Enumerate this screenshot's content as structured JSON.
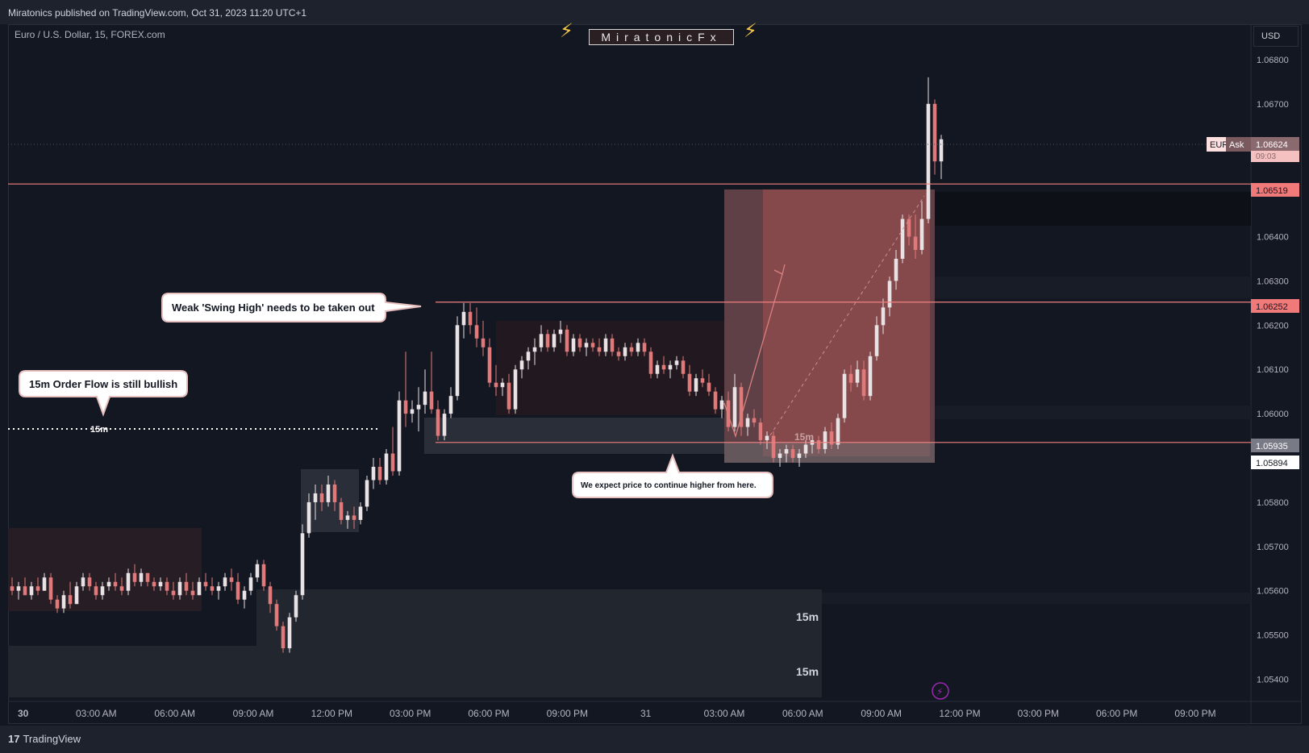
{
  "header": {
    "published": "Miratonics published on TradingView.com, Oct 31, 2023 11:20 UTC+1",
    "symbol": "Euro / U.S. Dollar, 15, FOREX.com",
    "brand": "MiratonicFx",
    "currency": "USD",
    "footer_logo": "TradingView"
  },
  "colors": {
    "background": "#131722",
    "bull_candle": "#e8e2e4",
    "bear_candle": "#e07a7a",
    "level_line": "#f08080",
    "zone_fill": "#e07a7a"
  },
  "annotations": {
    "swing_high": "Weak 'Swing High' needs to be taken out",
    "order_flow": "15m Order Flow is still bullish",
    "expect": "We expect price to continue higher from here.",
    "tf_label": "15m",
    "tf_label_2": "15m",
    "tf_label_3": "15m",
    "tf_label_4": "15m"
  },
  "price_tags": {
    "current": "1.06624",
    "current_sub": "09:03",
    "ask_label": "Ask",
    "eur_label": "EUR",
    "level_top": "1.06519",
    "level_mid": "1.06252",
    "level_low": "1.05935",
    "level_low2": "1.05894"
  },
  "chart_data": {
    "type": "candlestick",
    "symbol": "EURUSD",
    "timeframe": "15",
    "ylim": [
      1.0535,
      1.0688
    ],
    "y_ticks": [
      1.068,
      1.067,
      1.064,
      1.063,
      1.062,
      1.061,
      1.06,
      1.058,
      1.057,
      1.056,
      1.055,
      1.054
    ],
    "y_tick_labels": [
      "1.06800",
      "1.06700",
      "1.06400",
      "1.06300",
      "1.06200",
      "1.06100",
      "1.06000",
      "1.05800",
      "1.05700",
      "1.05600",
      "1.05500",
      "1.05400"
    ],
    "x_ticks": [
      "30",
      "03:00 AM",
      "06:00 AM",
      "09:00 AM",
      "12:00 PM",
      "03:00 PM",
      "06:00 PM",
      "09:00 PM",
      "31",
      "03:00 AM",
      "06:00 AM",
      "09:00 AM",
      "12:00 PM",
      "03:00 PM",
      "06:00 PM",
      "09:00 PM"
    ],
    "levels": [
      1.06519,
      1.06252,
      1.05935
    ],
    "series": [
      {
        "values": [
          [
            1.0561,
            1.0563,
            1.0559,
            1.056
          ],
          [
            1.056,
            1.0562,
            1.0558,
            1.0561
          ],
          [
            1.0561,
            1.0563,
            1.0559,
            1.0559
          ],
          [
            1.0559,
            1.0562,
            1.0558,
            1.0561
          ],
          [
            1.0561,
            1.0563,
            1.0559,
            1.056
          ],
          [
            1.056,
            1.0564,
            1.056,
            1.0563
          ],
          [
            1.0563,
            1.0564,
            1.0557,
            1.0558
          ],
          [
            1.0558,
            1.0559,
            1.0555,
            1.0556
          ],
          [
            1.0556,
            1.056,
            1.0555,
            1.0559
          ],
          [
            1.0559,
            1.0562,
            1.0556,
            1.0557
          ],
          [
            1.0557,
            1.0562,
            1.0557,
            1.0561
          ],
          [
            1.0561,
            1.0564,
            1.056,
            1.0563
          ],
          [
            1.0563,
            1.0564,
            1.056,
            1.0561
          ],
          [
            1.0561,
            1.0562,
            1.0558,
            1.0559
          ],
          [
            1.0559,
            1.0562,
            1.0558,
            1.0561
          ],
          [
            1.0561,
            1.0563,
            1.056,
            1.0562
          ],
          [
            1.0562,
            1.0564,
            1.056,
            1.0561
          ],
          [
            1.0561,
            1.0563,
            1.0559,
            1.056
          ],
          [
            1.056,
            1.0565,
            1.0559,
            1.0564
          ],
          [
            1.0564,
            1.0566,
            1.0561,
            1.0562
          ],
          [
            1.0562,
            1.0565,
            1.0561,
            1.0564
          ],
          [
            1.0564,
            1.0564,
            1.0561,
            1.0562
          ],
          [
            1.0562,
            1.0563,
            1.056,
            1.0561
          ],
          [
            1.0561,
            1.0563,
            1.056,
            1.0562
          ],
          [
            1.0562,
            1.0563,
            1.0559,
            1.056
          ],
          [
            1.056,
            1.0562,
            1.0558,
            1.0559
          ],
          [
            1.0559,
            1.0563,
            1.0558,
            1.0562
          ],
          [
            1.0562,
            1.0564,
            1.0559,
            1.056
          ],
          [
            1.056,
            1.0562,
            1.0558,
            1.0559
          ],
          [
            1.0559,
            1.0563,
            1.0559,
            1.0562
          ],
          [
            1.0562,
            1.0564,
            1.056,
            1.0561
          ],
          [
            1.0561,
            1.0563,
            1.0559,
            1.056
          ],
          [
            1.056,
            1.0562,
            1.0558,
            1.0561
          ],
          [
            1.0561,
            1.0564,
            1.056,
            1.0563
          ],
          [
            1.0563,
            1.0565,
            1.056,
            1.0562
          ],
          [
            1.0562,
            1.0564,
            1.0557,
            1.0558
          ],
          [
            1.0558,
            1.0561,
            1.0556,
            1.056
          ],
          [
            1.056,
            1.0564,
            1.0559,
            1.0563
          ],
          [
            1.0563,
            1.0567,
            1.0562,
            1.0566
          ],
          [
            1.0566,
            1.0567,
            1.056,
            1.0561
          ],
          [
            1.0561,
            1.0562,
            1.0555,
            1.0557
          ],
          [
            1.0557,
            1.0558,
            1.0551,
            1.0552
          ],
          [
            1.0552,
            1.0553,
            1.0546,
            1.0547
          ],
          [
            1.0547,
            1.0555,
            1.0546,
            1.0554
          ],
          [
            1.0554,
            1.056,
            1.0553,
            1.0559
          ],
          [
            1.0559,
            1.0575,
            1.0558,
            1.0573
          ],
          [
            1.0573,
            1.0582,
            1.0572,
            1.058
          ],
          [
            1.058,
            1.0584,
            1.0576,
            1.0582
          ],
          [
            1.0582,
            1.0584,
            1.0578,
            1.058
          ],
          [
            1.058,
            1.0586,
            1.0579,
            1.0584
          ],
          [
            1.0584,
            1.0585,
            1.0578,
            1.058
          ],
          [
            1.058,
            1.0581,
            1.0575,
            1.0576
          ],
          [
            1.0576,
            1.0578,
            1.0574,
            1.0577
          ],
          [
            1.0577,
            1.0579,
            1.0574,
            1.0576
          ],
          [
            1.0576,
            1.058,
            1.0575,
            1.0579
          ],
          [
            1.0579,
            1.0586,
            1.0578,
            1.0585
          ],
          [
            1.0585,
            1.059,
            1.0583,
            1.0588
          ],
          [
            1.0588,
            1.059,
            1.0584,
            1.0585
          ],
          [
            1.0585,
            1.0592,
            1.0584,
            1.0591
          ],
          [
            1.0591,
            1.0597,
            1.0586,
            1.0587
          ],
          [
            1.0587,
            1.0605,
            1.0586,
            1.0603
          ],
          [
            1.0603,
            1.0614,
            1.0597,
            1.06
          ],
          [
            1.06,
            1.0603,
            1.0598,
            1.0601
          ],
          [
            1.0601,
            1.0606,
            1.0596,
            1.0602
          ],
          [
            1.0602,
            1.061,
            1.06,
            1.0605
          ],
          [
            1.0605,
            1.0614,
            1.06,
            1.0601
          ],
          [
            1.0601,
            1.0603,
            1.0594,
            1.0595
          ],
          [
            1.0595,
            1.0601,
            1.0594,
            1.06
          ],
          [
            1.06,
            1.0606,
            1.0599,
            1.0604
          ],
          [
            1.0604,
            1.0622,
            1.0603,
            1.062
          ],
          [
            1.062,
            1.0625,
            1.0617,
            1.0623
          ],
          [
            1.0623,
            1.0625,
            1.0618,
            1.062
          ],
          [
            1.062,
            1.0624,
            1.0615,
            1.0617
          ],
          [
            1.0617,
            1.0621,
            1.0613,
            1.0615
          ],
          [
            1.0615,
            1.0617,
            1.0606,
            1.0607
          ],
          [
            1.0607,
            1.0611,
            1.0604,
            1.0606
          ],
          [
            1.0606,
            1.0608,
            1.0604,
            1.0607
          ],
          [
            1.0607,
            1.0609,
            1.06,
            1.0601
          ],
          [
            1.0601,
            1.0611,
            1.06,
            1.061
          ],
          [
            1.061,
            1.0613,
            1.0608,
            1.0612
          ],
          [
            1.0612,
            1.0615,
            1.061,
            1.0614
          ],
          [
            1.0614,
            1.0617,
            1.0611,
            1.0615
          ],
          [
            1.0615,
            1.062,
            1.0614,
            1.0618
          ],
          [
            1.0618,
            1.0619,
            1.0614,
            1.0615
          ],
          [
            1.0615,
            1.0619,
            1.0614,
            1.0618
          ],
          [
            1.0618,
            1.0621,
            1.0616,
            1.0619
          ],
          [
            1.0619,
            1.062,
            1.0613,
            1.0614
          ],
          [
            1.0614,
            1.0618,
            1.0613,
            1.0617
          ],
          [
            1.0617,
            1.0618,
            1.0614,
            1.0615
          ],
          [
            1.0615,
            1.0617,
            1.0613,
            1.0616
          ],
          [
            1.0616,
            1.0617,
            1.0614,
            1.0615
          ],
          [
            1.0615,
            1.0617,
            1.0613,
            1.0614
          ],
          [
            1.0614,
            1.0618,
            1.0613,
            1.0617
          ],
          [
            1.0617,
            1.0618,
            1.0613,
            1.0614
          ],
          [
            1.0614,
            1.0615,
            1.0612,
            1.0613
          ],
          [
            1.0613,
            1.0616,
            1.0612,
            1.0615
          ],
          [
            1.0615,
            1.0616,
            1.0613,
            1.0614
          ],
          [
            1.0614,
            1.0617,
            1.0613,
            1.0616
          ],
          [
            1.0616,
            1.0617,
            1.0613,
            1.0614
          ],
          [
            1.0614,
            1.0615,
            1.0608,
            1.0609
          ],
          [
            1.0609,
            1.0612,
            1.0608,
            1.0611
          ],
          [
            1.0611,
            1.0613,
            1.0609,
            1.061
          ],
          [
            1.061,
            1.0612,
            1.0608,
            1.0611
          ],
          [
            1.0611,
            1.0613,
            1.061,
            1.0612
          ],
          [
            1.0612,
            1.0613,
            1.0608,
            1.0609
          ],
          [
            1.0609,
            1.0611,
            1.0604,
            1.0605
          ],
          [
            1.0605,
            1.0609,
            1.0604,
            1.0608
          ],
          [
            1.0608,
            1.061,
            1.0606,
            1.0607
          ],
          [
            1.0607,
            1.0609,
            1.0604,
            1.0605
          ],
          [
            1.0605,
            1.0606,
            1.06,
            1.0601
          ],
          [
            1.0601,
            1.0604,
            1.0599,
            1.0603
          ],
          [
            1.0603,
            1.0605,
            1.0596,
            1.0597
          ],
          [
            1.0597,
            1.0609,
            1.0596,
            1.0606
          ],
          [
            1.0606,
            1.0607,
            1.0595,
            1.0597
          ],
          [
            1.0597,
            1.06,
            1.0595,
            1.0599
          ],
          [
            1.0599,
            1.0601,
            1.0597,
            1.0598
          ],
          [
            1.0598,
            1.0599,
            1.0593,
            1.0594
          ],
          [
            1.0594,
            1.0596,
            1.0592,
            1.0595
          ],
          [
            1.0595,
            1.0596,
            1.0589,
            1.059
          ],
          [
            1.059,
            1.0592,
            1.0588,
            1.0591
          ],
          [
            1.0591,
            1.0593,
            1.0589,
            1.0592
          ],
          [
            1.0592,
            1.0593,
            1.0589,
            1.059
          ],
          [
            1.059,
            1.0592,
            1.0588,
            1.0591
          ],
          [
            1.0591,
            1.0594,
            1.059,
            1.0593
          ],
          [
            1.0593,
            1.0595,
            1.0591,
            1.0594
          ],
          [
            1.0594,
            1.0595,
            1.0591,
            1.0592
          ],
          [
            1.0592,
            1.0597,
            1.0591,
            1.0596
          ],
          [
            1.0596,
            1.0598,
            1.0592,
            1.0593
          ],
          [
            1.0593,
            1.06,
            1.0592,
            1.0599
          ],
          [
            1.0599,
            1.061,
            1.0598,
            1.0609
          ],
          [
            1.0609,
            1.0611,
            1.0605,
            1.0607
          ],
          [
            1.0607,
            1.0612,
            1.0606,
            1.061
          ],
          [
            1.061,
            1.0612,
            1.0603,
            1.0604
          ],
          [
            1.0604,
            1.0614,
            1.0603,
            1.0613
          ],
          [
            1.0613,
            1.0622,
            1.0612,
            1.062
          ],
          [
            1.062,
            1.0626,
            1.0618,
            1.0624
          ],
          [
            1.0624,
            1.0631,
            1.0622,
            1.063
          ],
          [
            1.063,
            1.0637,
            1.0628,
            1.0635
          ],
          [
            1.0635,
            1.0645,
            1.0634,
            1.0644
          ],
          [
            1.0644,
            1.0645,
            1.0638,
            1.064
          ],
          [
            1.064,
            1.0645,
            1.0635,
            1.0637
          ],
          [
            1.0637,
            1.0648,
            1.0636,
            1.0644
          ],
          [
            1.0644,
            1.0676,
            1.0643,
            1.067
          ],
          [
            1.067,
            1.0671,
            1.0654,
            1.0657
          ],
          [
            1.0657,
            1.0663,
            1.0653,
            1.0662
          ]
        ]
      }
    ]
  }
}
